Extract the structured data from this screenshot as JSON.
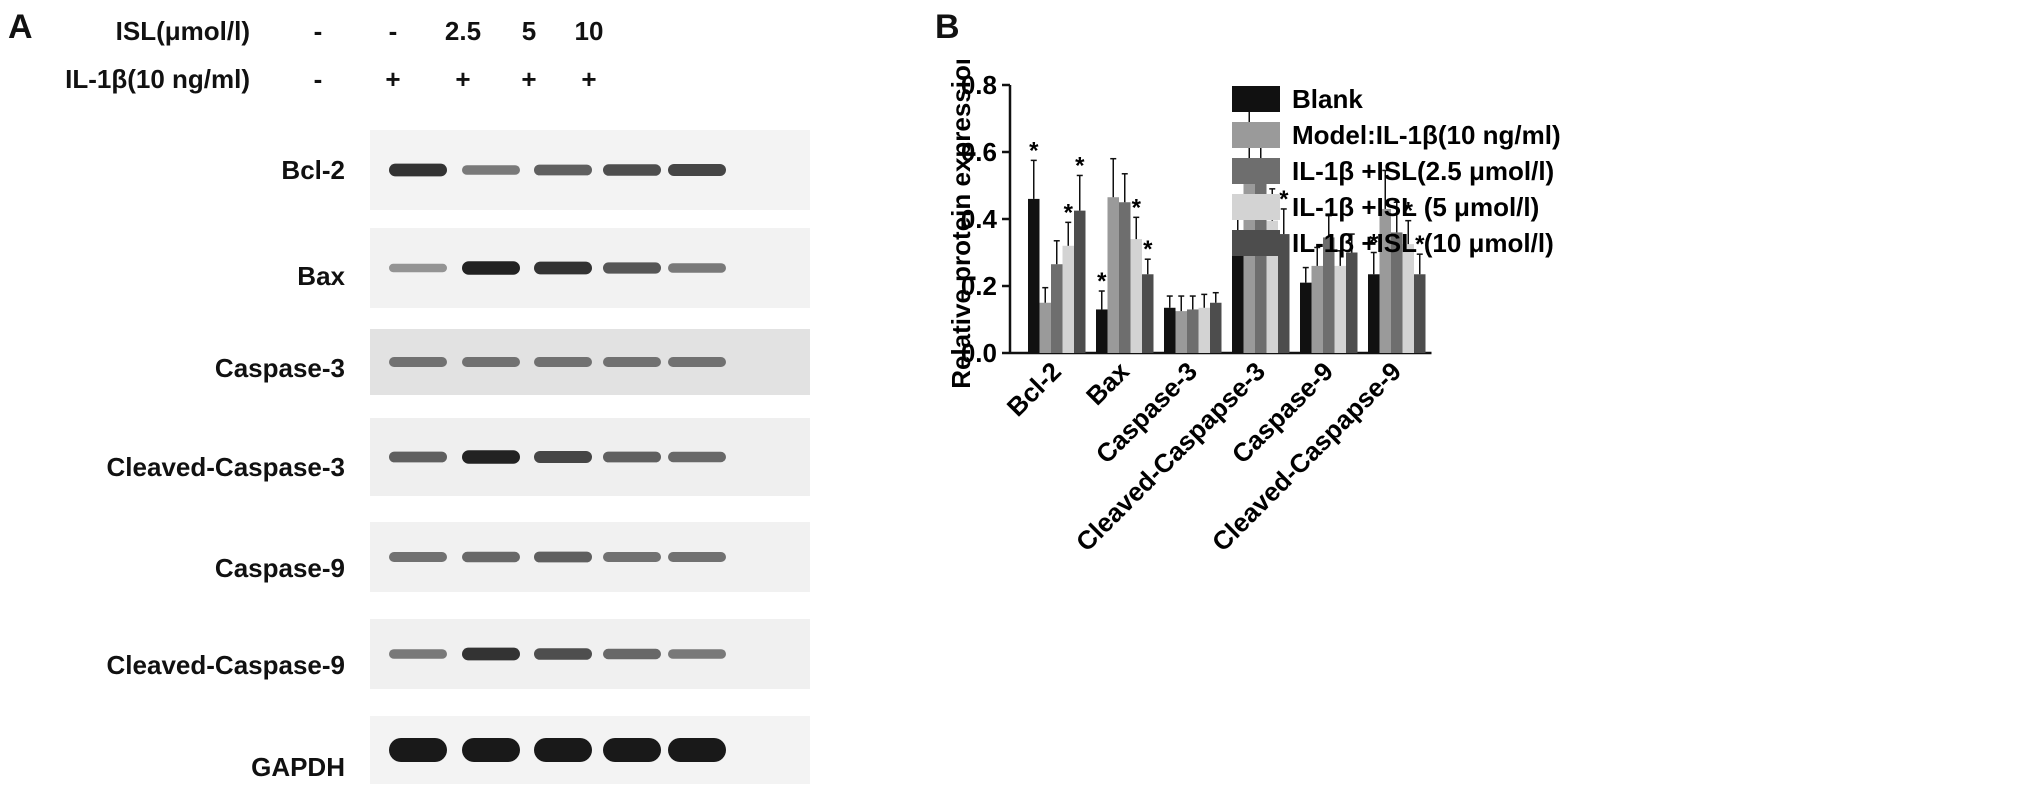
{
  "panel_a": {
    "letter": "A",
    "treatments": [
      {
        "label": "ISL(μmol/l)",
        "values": [
          "-",
          "-",
          "2.5",
          "5",
          "10"
        ]
      },
      {
        "label": "IL-1β(10 ng/ml)",
        "values": [
          "-",
          "+",
          "+",
          "+",
          "+"
        ]
      }
    ],
    "proteins": [
      "Bcl-2",
      "Bax",
      "Caspase-3",
      "Cleaved-Caspase-3",
      "Caspase-9",
      "Cleaved-Caspase-9",
      "GAPDH"
    ],
    "band_intensity": [
      [
        0.85,
        0.45,
        0.6,
        0.7,
        0.75
      ],
      [
        0.3,
        0.95,
        0.85,
        0.65,
        0.45
      ],
      [
        0.5,
        0.5,
        0.5,
        0.5,
        0.5
      ],
      [
        0.6,
        0.95,
        0.75,
        0.6,
        0.55
      ],
      [
        0.5,
        0.55,
        0.6,
        0.5,
        0.5
      ],
      [
        0.45,
        0.85,
        0.7,
        0.55,
        0.45
      ],
      [
        1.0,
        1.0,
        1.0,
        1.0,
        1.0
      ]
    ]
  },
  "chart_data": {
    "letter": "B",
    "type": "bar",
    "ylabel": "Relative protein expression",
    "ylim": [
      0,
      0.8
    ],
    "yticks": [
      "0.0",
      "0.2",
      "0.4",
      "0.6",
      "0.8"
    ],
    "categories": [
      "Bcl-2",
      "Bax",
      "Caspase-3",
      "Cleaved-Caspapse-3",
      "Caspase-9",
      "Cleaved-Caspapse-9"
    ],
    "series": [
      {
        "name": "Blank",
        "color": "#111111",
        "values": [
          0.46,
          0.13,
          0.135,
          0.315,
          0.21,
          0.235
        ],
        "errors": [
          0.115,
          0.055,
          0.035,
          0.085,
          0.045,
          0.065
        ],
        "stars": [
          true,
          true,
          false,
          true,
          false,
          true
        ]
      },
      {
        "name": "Model:IL-1β(10 ng/ml)",
        "color": "#9a9a9a",
        "values": [
          0.15,
          0.465,
          0.125,
          0.575,
          0.26,
          0.43
        ],
        "errors": [
          0.045,
          0.115,
          0.045,
          0.155,
          0.055,
          0.115
        ],
        "stars": [
          false,
          false,
          false,
          false,
          false,
          false
        ]
      },
      {
        "name": "IL-1β +ISL(2.5 μmol/l)",
        "color": "#6e6e6e",
        "values": [
          0.265,
          0.45,
          0.13,
          0.54,
          0.345,
          0.36
        ],
        "errors": [
          0.07,
          0.085,
          0.04,
          0.14,
          0.065,
          0.09
        ],
        "stars": [
          false,
          false,
          false,
          false,
          false,
          false
        ]
      },
      {
        "name": "IL-1β +ISL (5 μmol/l)",
        "color": "#d3d3d3",
        "values": [
          0.32,
          0.34,
          0.135,
          0.395,
          0.26,
          0.325
        ],
        "errors": [
          0.07,
          0.065,
          0.04,
          0.095,
          0.045,
          0.07
        ],
        "stars": [
          true,
          true,
          false,
          true,
          false,
          true
        ]
      },
      {
        "name": "IL-1β +ISL (10 μmol/l)",
        "color": "#4d4d4d",
        "values": [
          0.425,
          0.235,
          0.15,
          0.355,
          0.3,
          0.235
        ],
        "errors": [
          0.105,
          0.045,
          0.03,
          0.075,
          0.055,
          0.06
        ],
        "stars": [
          true,
          true,
          false,
          true,
          false,
          true
        ]
      }
    ],
    "star_symbol": "*",
    "legend_position": "right",
    "grid": false
  }
}
